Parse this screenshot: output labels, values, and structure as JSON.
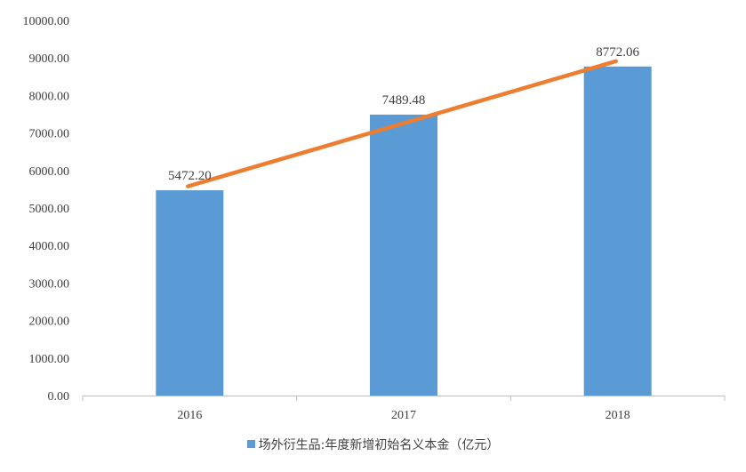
{
  "chart_data": {
    "type": "bar",
    "categories": [
      "2016",
      "2017",
      "2018"
    ],
    "series": [
      {
        "name": "场外衍生品:年度新增初始名义本金（亿元）",
        "values": [
          5472.2,
          7489.48,
          8772.06
        ],
        "data_labels": [
          "5472.20",
          "7489.48",
          "8772.06"
        ],
        "color": "#5B9BD5"
      }
    ],
    "trendline": {
      "type": "linear",
      "color": "#ED7D31",
      "start_value": 5577.52,
      "end_value": 8912.46
    },
    "ylim": [
      0,
      10000
    ],
    "yticks": [
      0,
      1000,
      2000,
      3000,
      4000,
      5000,
      6000,
      7000,
      8000,
      9000,
      10000
    ],
    "ytick_labels": [
      "0.00",
      "1000.00",
      "2000.00",
      "3000.00",
      "4000.00",
      "5000.00",
      "6000.00",
      "7000.00",
      "8000.00",
      "9000.00",
      "10000.00"
    ],
    "grid": false,
    "legend_position": "bottom",
    "title": "",
    "xlabel": "",
    "ylabel": ""
  }
}
